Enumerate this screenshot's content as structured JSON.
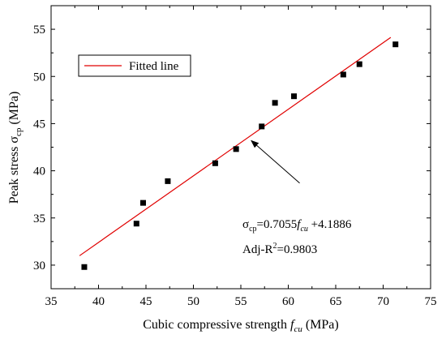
{
  "chart_data": {
    "type": "scatter",
    "xlabel": {
      "main": "Cubic compressive strength ",
      "var": "f",
      "sub": "cu",
      "unit": " (MPa)"
    },
    "ylabel": {
      "main": "Peak stress σ",
      "sub": "cp",
      "unit": "  (MPa)"
    },
    "xlim": [
      35,
      75
    ],
    "ylim": [
      27.5,
      57.5
    ],
    "x_ticks": [
      35,
      40,
      45,
      50,
      55,
      60,
      65,
      70,
      75
    ],
    "y_ticks": [
      30,
      35,
      40,
      45,
      50,
      55
    ],
    "grid": false,
    "legend": {
      "position": "top-left",
      "entries": [
        {
          "label": "Fitted line",
          "color": "#e00000"
        }
      ]
    },
    "points": [
      {
        "x": 38.5,
        "y": 29.8
      },
      {
        "x": 44.0,
        "y": 34.4
      },
      {
        "x": 44.7,
        "y": 36.6
      },
      {
        "x": 47.3,
        "y": 38.9
      },
      {
        "x": 52.3,
        "y": 40.8
      },
      {
        "x": 54.5,
        "y": 42.3
      },
      {
        "x": 57.2,
        "y": 44.7
      },
      {
        "x": 58.6,
        "y": 47.2
      },
      {
        "x": 60.6,
        "y": 47.9
      },
      {
        "x": 65.8,
        "y": 50.2
      },
      {
        "x": 67.5,
        "y": 51.3
      },
      {
        "x": 71.3,
        "y": 53.4
      }
    ],
    "point_color": "#000000",
    "fitted_line": {
      "slope": 0.7055,
      "intercept": 4.1886,
      "x_range": [
        38.0,
        70.8
      ],
      "color": "#e00000"
    },
    "annotation": {
      "eq_prefix": "σ",
      "eq_sub": "cp",
      "eq_mid": "=0.7055",
      "eq_var": "f",
      "eq_var_sub": "cu",
      "eq_suffix": " +4.1886",
      "r2_prefix": "Adj-R",
      "r2_sup": "2",
      "r2_suffix": "=0.9803",
      "arrow_from": [
        61.2,
        38.7
      ],
      "arrow_to": [
        56.1,
        43.2
      ]
    }
  }
}
